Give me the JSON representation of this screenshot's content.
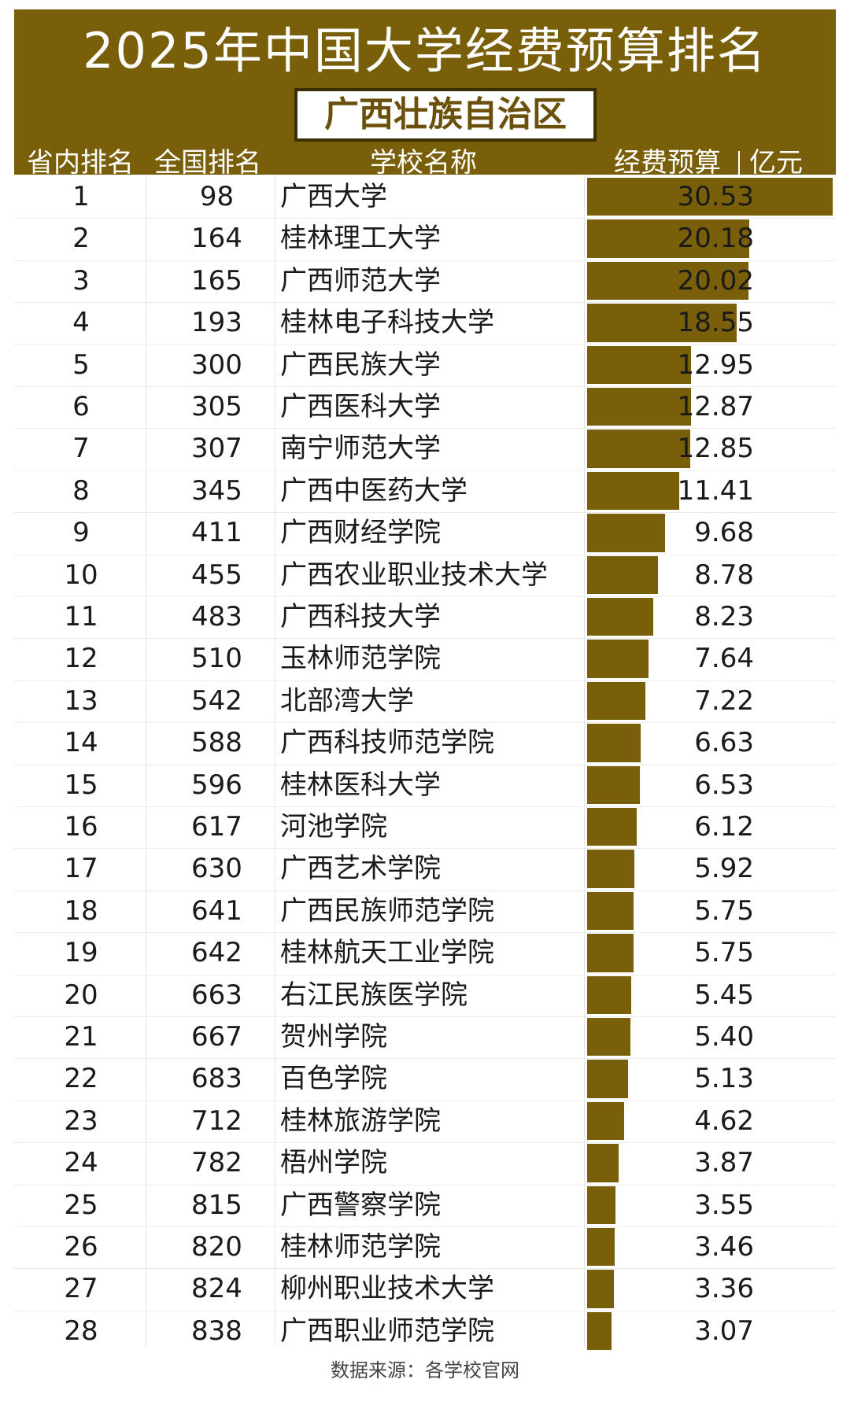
{
  "title": "2025年中国大学经费预算排名",
  "subtitle": "广西壮族自治区",
  "headers": {
    "province_rank": "省内排名",
    "national_rank": "全国排名",
    "school": "学校名称",
    "budget": "经费预算",
    "unit": "亿元"
  },
  "footer": "数据来源：各学校官网",
  "colors": {
    "brand": "#7a5f0b",
    "text": "#1a1a1a"
  },
  "chart_data": {
    "type": "bar",
    "title": "2025年中国大学经费预算排名",
    "subtitle": "广西壮族自治区",
    "ylabel": "经费预算 亿元",
    "columns": [
      "省内排名",
      "全国排名",
      "学校名称",
      "经费预算"
    ],
    "rows": [
      {
        "province_rank": "1",
        "national_rank": "98",
        "name": "广西大学",
        "value": 30.53,
        "label": "30.53"
      },
      {
        "province_rank": "2",
        "national_rank": "164",
        "name": "桂林理工大学",
        "value": 20.18,
        "label": "20.18"
      },
      {
        "province_rank": "3",
        "national_rank": "165",
        "name": "广西师范大学",
        "value": 20.02,
        "label": "20.02"
      },
      {
        "province_rank": "4",
        "national_rank": "193",
        "name": "桂林电子科技大学",
        "value": 18.55,
        "label": "18.55"
      },
      {
        "province_rank": "5",
        "national_rank": "300",
        "name": "广西民族大学",
        "value": 12.95,
        "label": "12.95"
      },
      {
        "province_rank": "6",
        "national_rank": "305",
        "name": "广西医科大学",
        "value": 12.87,
        "label": "12.87"
      },
      {
        "province_rank": "7",
        "national_rank": "307",
        "name": "南宁师范大学",
        "value": 12.85,
        "label": "12.85"
      },
      {
        "province_rank": "8",
        "national_rank": "345",
        "name": "广西中医药大学",
        "value": 11.41,
        "label": "11.41"
      },
      {
        "province_rank": "9",
        "national_rank": "411",
        "name": "广西财经学院",
        "value": 9.68,
        "label": "9.68"
      },
      {
        "province_rank": "10",
        "national_rank": "455",
        "name": "广西农业职业技术大学",
        "value": 8.78,
        "label": "8.78"
      },
      {
        "province_rank": "11",
        "national_rank": "483",
        "name": "广西科技大学",
        "value": 8.23,
        "label": "8.23"
      },
      {
        "province_rank": "12",
        "national_rank": "510",
        "name": "玉林师范学院",
        "value": 7.64,
        "label": "7.64"
      },
      {
        "province_rank": "13",
        "national_rank": "542",
        "name": "北部湾大学",
        "value": 7.22,
        "label": "7.22"
      },
      {
        "province_rank": "14",
        "national_rank": "588",
        "name": "广西科技师范学院",
        "value": 6.63,
        "label": "6.63"
      },
      {
        "province_rank": "15",
        "national_rank": "596",
        "name": "桂林医科大学",
        "value": 6.53,
        "label": "6.53"
      },
      {
        "province_rank": "16",
        "national_rank": "617",
        "name": "河池学院",
        "value": 6.12,
        "label": "6.12"
      },
      {
        "province_rank": "17",
        "national_rank": "630",
        "name": "广西艺术学院",
        "value": 5.92,
        "label": "5.92"
      },
      {
        "province_rank": "18",
        "national_rank": "641",
        "name": "广西民族师范学院",
        "value": 5.75,
        "label": "5.75"
      },
      {
        "province_rank": "19",
        "national_rank": "642",
        "name": "桂林航天工业学院",
        "value": 5.75,
        "label": "5.75"
      },
      {
        "province_rank": "20",
        "national_rank": "663",
        "name": "右江民族医学院",
        "value": 5.45,
        "label": "5.45"
      },
      {
        "province_rank": "21",
        "national_rank": "667",
        "name": "贺州学院",
        "value": 5.4,
        "label": "5.40"
      },
      {
        "province_rank": "22",
        "national_rank": "683",
        "name": "百色学院",
        "value": 5.13,
        "label": "5.13"
      },
      {
        "province_rank": "23",
        "national_rank": "712",
        "name": "桂林旅游学院",
        "value": 4.62,
        "label": "4.62"
      },
      {
        "province_rank": "24",
        "national_rank": "782",
        "name": "梧州学院",
        "value": 3.87,
        "label": "3.87"
      },
      {
        "province_rank": "25",
        "national_rank": "815",
        "name": "广西警察学院",
        "value": 3.55,
        "label": "3.55"
      },
      {
        "province_rank": "26",
        "national_rank": "820",
        "name": "桂林师范学院",
        "value": 3.46,
        "label": "3.46"
      },
      {
        "province_rank": "27",
        "national_rank": "824",
        "name": "柳州职业技术大学",
        "value": 3.36,
        "label": "3.36"
      },
      {
        "province_rank": "28",
        "national_rank": "838",
        "name": "广西职业师范学院",
        "value": 3.07,
        "label": "3.07"
      }
    ],
    "xlim": [
      0,
      30.53
    ]
  }
}
